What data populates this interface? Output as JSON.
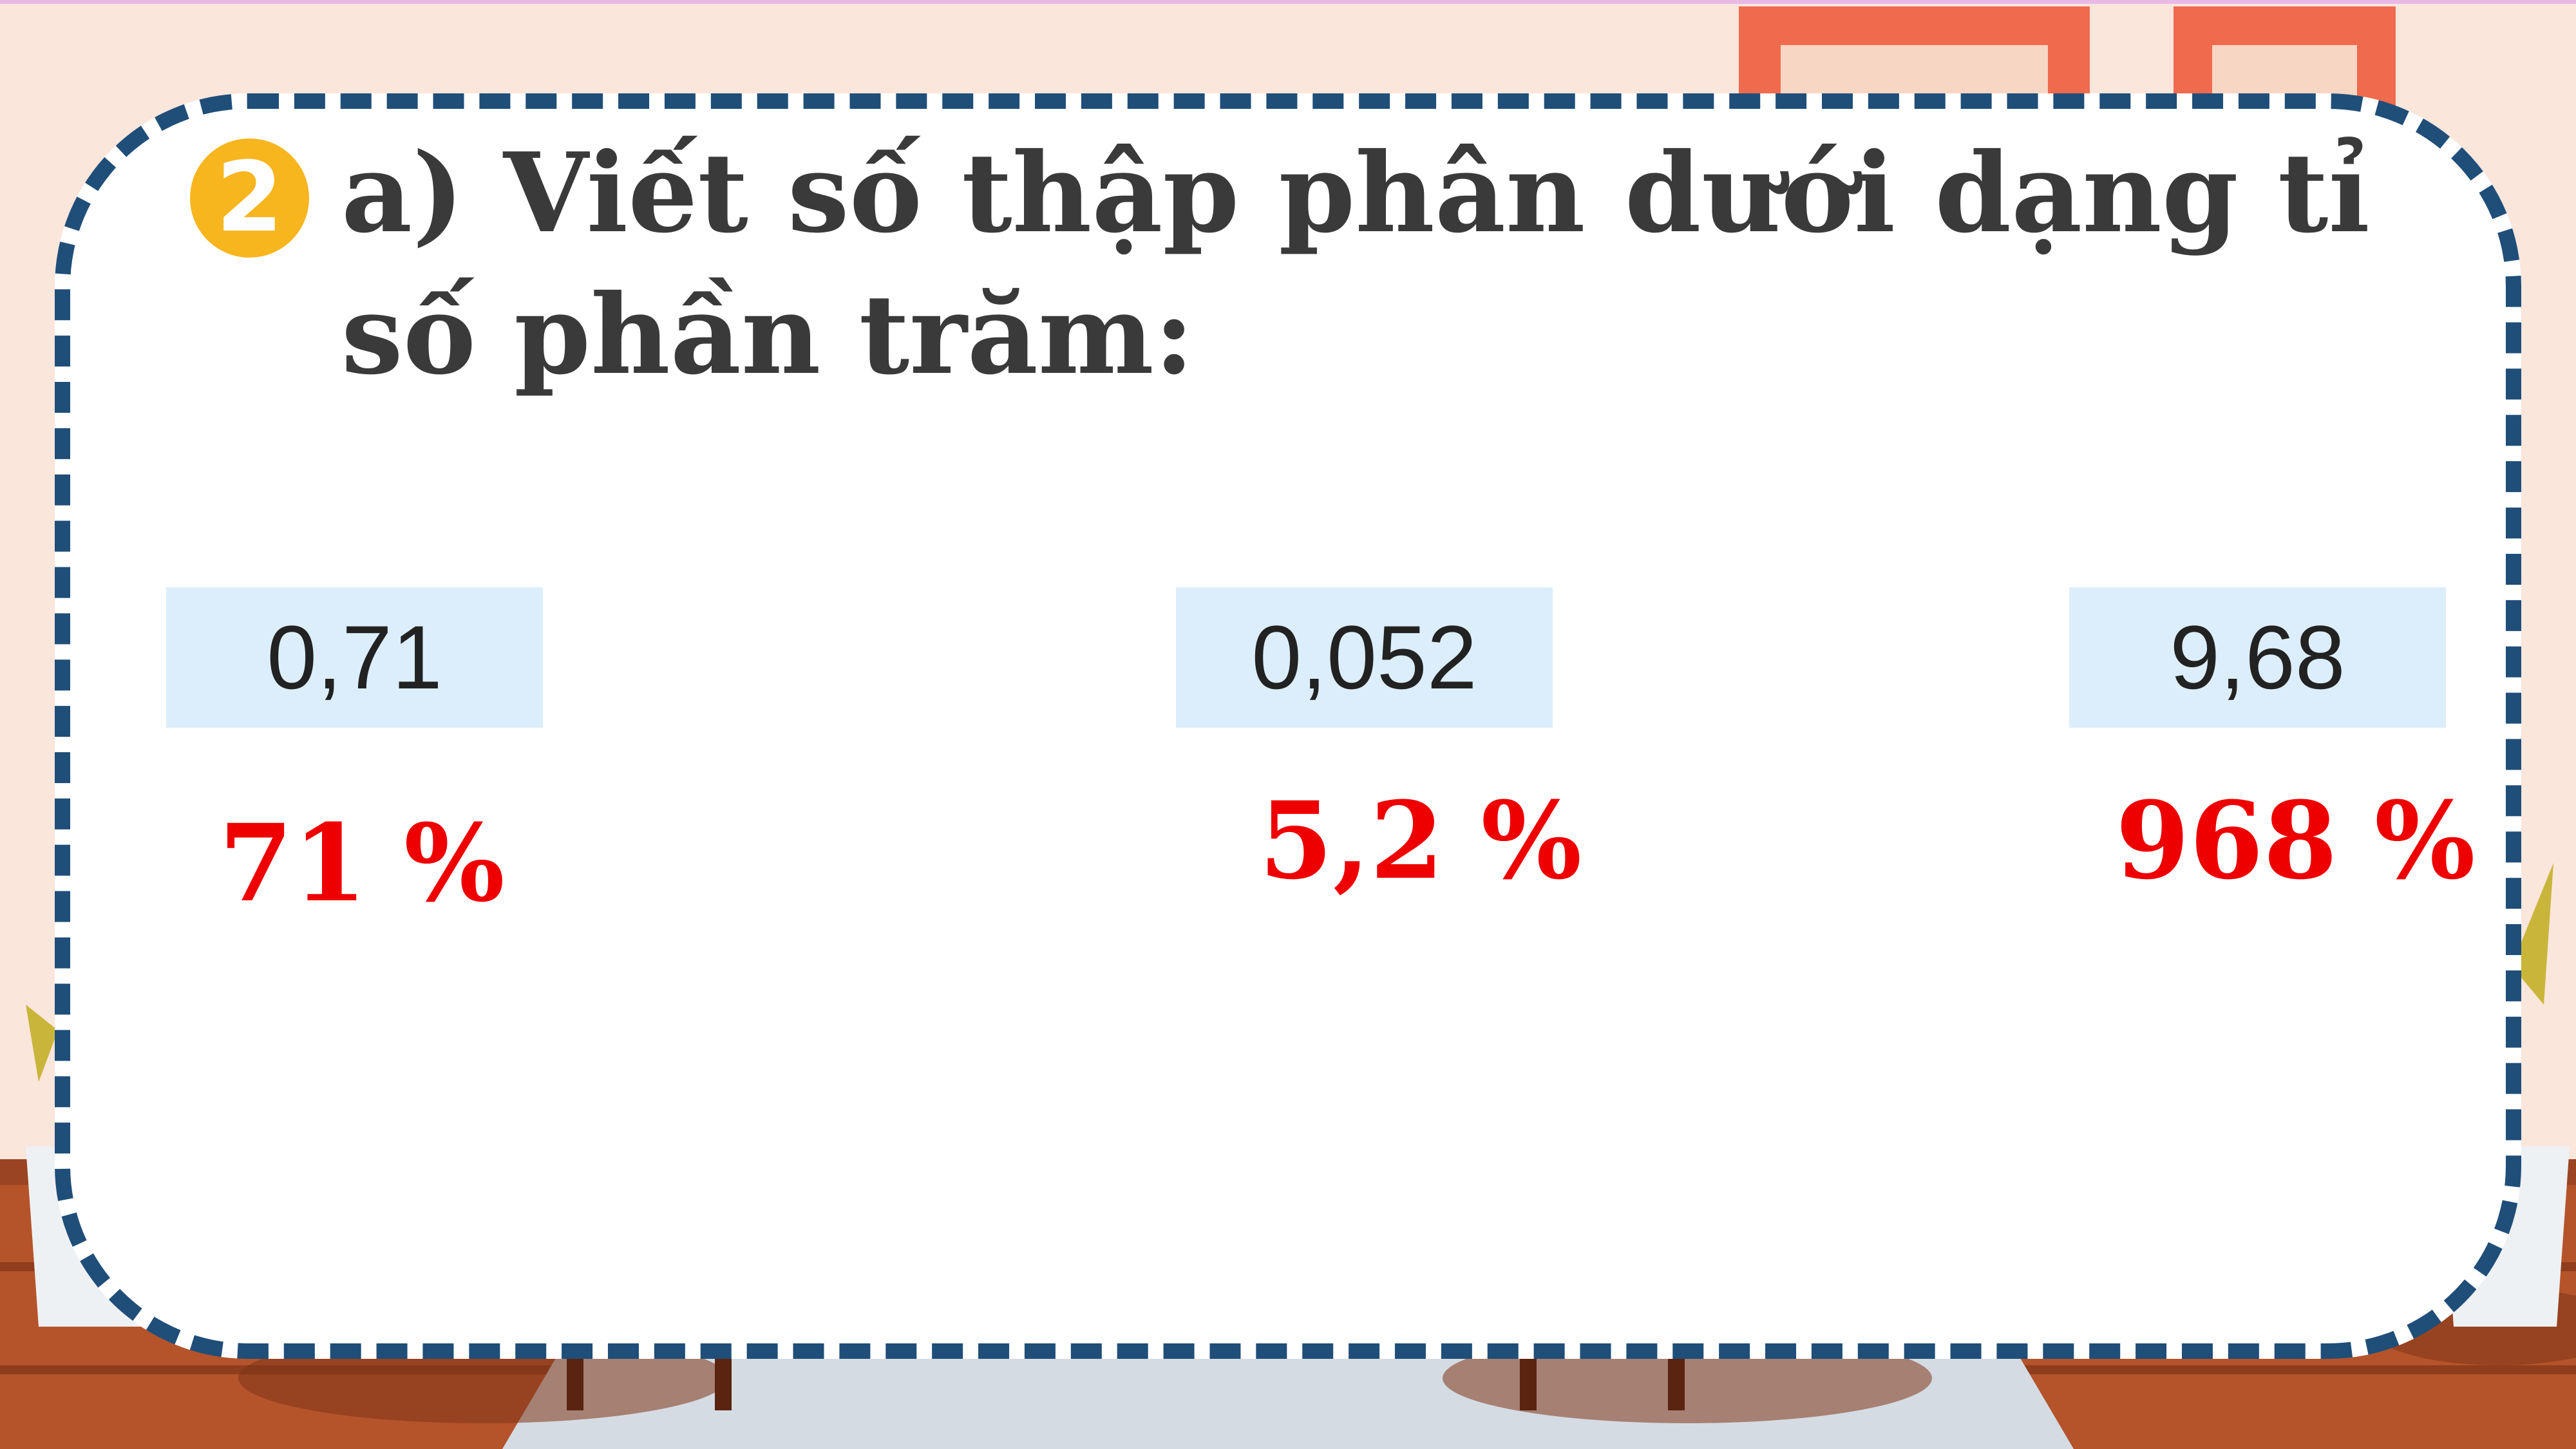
{
  "question": {
    "number": "2",
    "text": "a) Viết số thập phân dưới dạng tỉ số phần trăm:"
  },
  "items": [
    {
      "decimal": "0,71",
      "answer": "71 %"
    },
    {
      "decimal": "0,052",
      "answer": "5,2 %"
    },
    {
      "decimal": "9,68",
      "answer": "968 %"
    }
  ],
  "colors": {
    "border": "#1f4e79",
    "badge": "#f7b51e",
    "answer": "#ee0000",
    "box": "#dceefb",
    "question_text": "#3a3a3a"
  }
}
